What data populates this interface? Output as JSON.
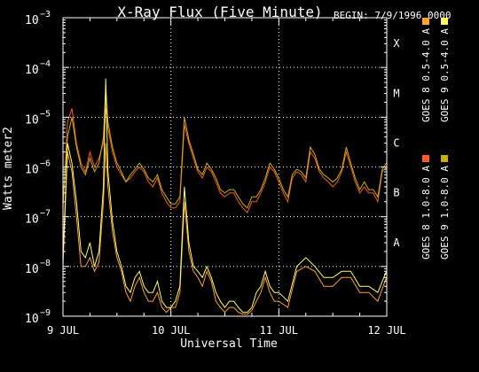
{
  "chart_data": {
    "type": "line",
    "title": "X-Ray Flux (Five Minute)",
    "begin_label": "BEGIN: 7/9/1996 0000",
    "xlabel": "Universal Time",
    "ylabel": "Watts meter2",
    "y_scale": "log",
    "ylim": [
      1e-09,
      0.001
    ],
    "xlim": [
      "1996-07-09 00:00",
      "1996-07-12 00:00"
    ],
    "x_ticks": [
      {
        "t": "1996-07-09 00:00",
        "label": "9 JUL"
      },
      {
        "t": "1996-07-10 00:00",
        "label": "10 JUL"
      },
      {
        "t": "1996-07-11 00:00",
        "label": "11 JUL"
      },
      {
        "t": "1996-07-12 00:00",
        "label": "12 JUL"
      }
    ],
    "y_ticks": [
      {
        "exp": -3,
        "label": "10",
        "sup": "−3"
      },
      {
        "exp": -4,
        "label": "10",
        "sup": "−4"
      },
      {
        "exp": -5,
        "label": "10",
        "sup": "−5"
      },
      {
        "exp": -6,
        "label": "10",
        "sup": "−6"
      },
      {
        "exp": -7,
        "label": "10",
        "sup": "−7"
      },
      {
        "exp": -8,
        "label": "10",
        "sup": "−8"
      },
      {
        "exp": -9,
        "label": "10",
        "sup": "−9"
      }
    ],
    "flare_classes": [
      {
        "label": "X",
        "exp": -4
      },
      {
        "label": "M",
        "exp": -5
      },
      {
        "label": "C",
        "exp": -6
      },
      {
        "label": "B",
        "exp": -7
      },
      {
        "label": "A",
        "exp": -8
      }
    ],
    "grid": true,
    "legend_position": "right",
    "series": [
      {
        "name": "GOES 8 1.0-8.0 A",
        "color": "#ff5a1f",
        "x": [
          "1996-07-09 00:00",
          "1996-07-09 01:00",
          "1996-07-09 02:00",
          "1996-07-09 03:00",
          "1996-07-09 04:00",
          "1996-07-09 05:00",
          "1996-07-09 06:00",
          "1996-07-09 07:00",
          "1996-07-09 08:00",
          "1996-07-09 09:00",
          "1996-07-09 09:30",
          "1996-07-09 10:00",
          "1996-07-09 11:00",
          "1996-07-09 12:00",
          "1996-07-09 13:00",
          "1996-07-09 14:00",
          "1996-07-09 15:00",
          "1996-07-09 16:00",
          "1996-07-09 17:00",
          "1996-07-09 18:00",
          "1996-07-09 19:00",
          "1996-07-09 20:00",
          "1996-07-09 21:00",
          "1996-07-09 22:00",
          "1996-07-09 23:00",
          "1996-07-10 00:00",
          "1996-07-10 01:00",
          "1996-07-10 02:00",
          "1996-07-10 03:00",
          "1996-07-10 04:00",
          "1996-07-10 05:00",
          "1996-07-10 06:00",
          "1996-07-10 07:00",
          "1996-07-10 08:00",
          "1996-07-10 09:00",
          "1996-07-10 10:00",
          "1996-07-10 11:00",
          "1996-07-10 12:00",
          "1996-07-10 13:00",
          "1996-07-10 14:00",
          "1996-07-10 15:00",
          "1996-07-10 16:00",
          "1996-07-10 17:00",
          "1996-07-10 18:00",
          "1996-07-10 19:00",
          "1996-07-10 20:00",
          "1996-07-10 21:00",
          "1996-07-10 22:00",
          "1996-07-10 23:00",
          "1996-07-11 00:00",
          "1996-07-11 01:00",
          "1996-07-11 02:00",
          "1996-07-11 03:00",
          "1996-07-11 04:00",
          "1996-07-11 05:00",
          "1996-07-11 06:00",
          "1996-07-11 07:00",
          "1996-07-11 08:00",
          "1996-07-11 09:00",
          "1996-07-11 10:00",
          "1996-07-11 11:00",
          "1996-07-11 12:00",
          "1996-07-11 13:00",
          "1996-07-11 14:00",
          "1996-07-11 15:00",
          "1996-07-11 16:00",
          "1996-07-11 17:00",
          "1996-07-11 18:00",
          "1996-07-11 19:00",
          "1996-07-11 20:00",
          "1996-07-11 21:00",
          "1996-07-11 22:00",
          "1996-07-11 23:00",
          "1996-07-11 23:55"
        ],
        "y": [
          1.5e-07,
          8e-06,
          1.5e-05,
          3e-06,
          1.2e-06,
          8e-07,
          2e-06,
          1e-06,
          1.5e-06,
          3e-06,
          1.5e-05,
          6e-06,
          2e-06,
          1e-06,
          7e-07,
          5e-07,
          6e-07,
          8e-07,
          1e-06,
          8e-07,
          5e-07,
          4e-07,
          6e-07,
          3e-07,
          2e-07,
          1.5e-07,
          1.5e-07,
          2e-07,
          7e-06,
          3e-06,
          1.5e-06,
          8e-07,
          6e-07,
          1e-06,
          8e-07,
          5e-07,
          3e-07,
          2.5e-07,
          3e-07,
          3e-07,
          2e-07,
          1.5e-07,
          1.2e-07,
          2e-07,
          2e-07,
          3e-07,
          5e-07,
          1e-06,
          8e-07,
          5e-07,
          3e-07,
          2e-07,
          6e-07,
          8e-07,
          7e-07,
          5e-07,
          2e-06,
          1.5e-06,
          8e-07,
          6e-07,
          5e-07,
          4e-07,
          5e-07,
          8e-07,
          2e-06,
          1e-06,
          5e-07,
          3e-07,
          4e-07,
          3e-07,
          3e-07,
          2e-07,
          8e-07,
          1e-06
        ]
      },
      {
        "name": "GOES 8 0.5-4.0 A",
        "color": "#ffa030",
        "x": [
          "1996-07-09 00:00",
          "1996-07-09 01:00",
          "1996-07-09 02:00",
          "1996-07-09 03:00",
          "1996-07-09 04:00",
          "1996-07-09 05:00",
          "1996-07-09 06:00",
          "1996-07-09 07:00",
          "1996-07-09 08:00",
          "1996-07-09 09:00",
          "1996-07-09 09:30",
          "1996-07-09 10:00",
          "1996-07-09 11:00",
          "1996-07-09 12:00",
          "1996-07-09 13:00",
          "1996-07-09 14:00",
          "1996-07-09 15:00",
          "1996-07-09 16:00",
          "1996-07-09 17:00",
          "1996-07-09 18:00",
          "1996-07-09 19:00",
          "1996-07-09 20:00",
          "1996-07-09 21:00",
          "1996-07-09 22:00",
          "1996-07-09 23:00",
          "1996-07-10 00:00",
          "1996-07-10 01:00",
          "1996-07-10 02:00",
          "1996-07-10 03:00",
          "1996-07-10 04:00",
          "1996-07-10 05:00",
          "1996-07-10 06:00",
          "1996-07-10 07:00",
          "1996-07-10 08:00",
          "1996-07-10 09:00",
          "1996-07-10 10:00",
          "1996-07-10 11:00",
          "1996-07-10 12:00",
          "1996-07-10 13:00",
          "1996-07-10 14:00",
          "1996-07-10 15:00",
          "1996-07-10 16:00",
          "1996-07-10 17:00",
          "1996-07-10 18:00",
          "1996-07-10 19:00",
          "1996-07-10 20:00",
          "1996-07-10 21:00",
          "1996-07-10 22:00",
          "1996-07-10 23:00",
          "1996-07-11 00:00",
          "1996-07-11 02:00",
          "1996-07-11 04:00",
          "1996-07-11 06:00",
          "1996-07-11 08:00",
          "1996-07-11 10:00",
          "1996-07-11 12:00",
          "1996-07-11 14:00",
          "1996-07-11 16:00",
          "1996-07-11 18:00",
          "1996-07-11 20:00",
          "1996-07-11 22:00",
          "1996-07-11 23:55"
        ],
        "y": [
          1e-08,
          2e-06,
          8e-07,
          1e-07,
          1e-08,
          1e-08,
          1.5e-08,
          8e-09,
          1.2e-08,
          2e-07,
          3e-06,
          4e-07,
          5e-08,
          1.5e-08,
          8e-09,
          3e-09,
          2e-09,
          4e-09,
          6e-09,
          3e-09,
          2e-09,
          2e-09,
          3e-09,
          1.5e-09,
          1.2e-09,
          1.5e-09,
          1.5e-09,
          3e-09,
          2e-07,
          2e-08,
          8e-09,
          6e-09,
          4e-09,
          8e-09,
          5e-09,
          2e-09,
          1.5e-09,
          1.2e-09,
          1.5e-09,
          1.5e-09,
          1.2e-09,
          1.1e-09,
          1.1e-09,
          1.3e-09,
          2e-09,
          3e-09,
          6e-09,
          3e-09,
          2e-09,
          2e-09,
          1.5e-09,
          8e-09,
          1e-08,
          8e-09,
          4e-09,
          4e-09,
          6e-09,
          6e-09,
          3e-09,
          3e-09,
          2e-09,
          6e-09
        ]
      },
      {
        "name": "GOES 9 1.0-8.0 A",
        "color": "#c8b400",
        "x": [
          "1996-07-09 00:00",
          "1996-07-09 01:00",
          "1996-07-09 02:00",
          "1996-07-09 03:00",
          "1996-07-09 04:00",
          "1996-07-09 05:00",
          "1996-07-09 06:00",
          "1996-07-09 07:00",
          "1996-07-09 08:00",
          "1996-07-09 09:00",
          "1996-07-09 09:30",
          "1996-07-09 10:00",
          "1996-07-09 11:00",
          "1996-07-09 12:00",
          "1996-07-09 13:00",
          "1996-07-09 14:00",
          "1996-07-09 15:00",
          "1996-07-09 16:00",
          "1996-07-09 17:00",
          "1996-07-09 18:00",
          "1996-07-09 19:00",
          "1996-07-09 20:00",
          "1996-07-09 21:00",
          "1996-07-09 22:00",
          "1996-07-09 23:00",
          "1996-07-10 00:00",
          "1996-07-10 01:00",
          "1996-07-10 02:00",
          "1996-07-10 03:00",
          "1996-07-10 04:00",
          "1996-07-10 05:00",
          "1996-07-10 06:00",
          "1996-07-10 07:00",
          "1996-07-10 08:00",
          "1996-07-10 09:00",
          "1996-07-10 10:00",
          "1996-07-10 11:00",
          "1996-07-10 12:00",
          "1996-07-10 13:00",
          "1996-07-10 14:00",
          "1996-07-10 15:00",
          "1996-07-10 16:00",
          "1996-07-10 17:00",
          "1996-07-10 18:00",
          "1996-07-10 19:00",
          "1996-07-10 20:00",
          "1996-07-10 21:00",
          "1996-07-10 22:00",
          "1996-07-10 23:00",
          "1996-07-11 00:00",
          "1996-07-11 01:00",
          "1996-07-11 02:00",
          "1996-07-11 03:00",
          "1996-07-11 04:00",
          "1996-07-11 05:00",
          "1996-07-11 06:00",
          "1996-07-11 07:00",
          "1996-07-11 08:00",
          "1996-07-11 09:00",
          "1996-07-11 10:00",
          "1996-07-11 11:00",
          "1996-07-11 12:00",
          "1996-07-11 13:00",
          "1996-07-11 14:00",
          "1996-07-11 15:00",
          "1996-07-11 16:00",
          "1996-07-11 17:00",
          "1996-07-11 18:00",
          "1996-07-11 19:00",
          "1996-07-11 20:00",
          "1996-07-11 21:00",
          "1996-07-11 22:00",
          "1996-07-11 23:00",
          "1996-07-11 23:55"
        ],
        "y": [
          2e-07,
          4e-06,
          1e-05,
          2.5e-06,
          1e-06,
          7e-07,
          1.5e-06,
          8e-07,
          1.2e-06,
          4e-06,
          4e-05,
          8e-06,
          2.5e-06,
          1.2e-06,
          8e-07,
          5e-07,
          7e-07,
          9e-07,
          1.2e-06,
          9e-07,
          6e-07,
          5e-07,
          7e-07,
          3.5e-07,
          2.5e-07,
          1.8e-07,
          1.8e-07,
          2.5e-07,
          1e-05,
          3.5e-06,
          1.8e-06,
          9e-07,
          7e-07,
          1.2e-06,
          9e-07,
          6e-07,
          3.5e-07,
          3e-07,
          3.5e-07,
          3.5e-07,
          2.5e-07,
          1.8e-07,
          1.5e-07,
          2.5e-07,
          2.5e-07,
          3.5e-07,
          6e-07,
          1.2e-06,
          9e-07,
          6e-07,
          3.5e-07,
          2.5e-07,
          7e-07,
          9e-07,
          8e-07,
          6e-07,
          2.5e-06,
          1.8e-06,
          9e-07,
          7e-07,
          6e-07,
          5e-07,
          6e-07,
          9e-07,
          2.5e-06,
          1.2e-06,
          6e-07,
          3.5e-07,
          5e-07,
          3.5e-07,
          3.5e-07,
          2.5e-07,
          9e-07,
          1.2e-06
        ]
      },
      {
        "name": "GOES 9 0.5-4.0 A",
        "color": "#ffff60",
        "x": [
          "1996-07-09 00:00",
          "1996-07-09 01:00",
          "1996-07-09 02:00",
          "1996-07-09 03:00",
          "1996-07-09 04:00",
          "1996-07-09 05:00",
          "1996-07-09 06:00",
          "1996-07-09 07:00",
          "1996-07-09 08:00",
          "1996-07-09 09:00",
          "1996-07-09 09:30",
          "1996-07-09 10:00",
          "1996-07-09 11:00",
          "1996-07-09 12:00",
          "1996-07-09 13:00",
          "1996-07-09 14:00",
          "1996-07-09 15:00",
          "1996-07-09 16:00",
          "1996-07-09 17:00",
          "1996-07-09 18:00",
          "1996-07-09 19:00",
          "1996-07-09 20:00",
          "1996-07-09 21:00",
          "1996-07-09 22:00",
          "1996-07-09 23:00",
          "1996-07-10 00:00",
          "1996-07-10 01:00",
          "1996-07-10 02:00",
          "1996-07-10 03:00",
          "1996-07-10 04:00",
          "1996-07-10 05:00",
          "1996-07-10 06:00",
          "1996-07-10 07:00",
          "1996-07-10 08:00",
          "1996-07-10 09:00",
          "1996-07-10 10:00",
          "1996-07-10 11:00",
          "1996-07-10 12:00",
          "1996-07-10 13:00",
          "1996-07-10 14:00",
          "1996-07-10 15:00",
          "1996-07-10 16:00",
          "1996-07-10 17:00",
          "1996-07-10 18:00",
          "1996-07-10 19:00",
          "1996-07-10 20:00",
          "1996-07-10 21:00",
          "1996-07-10 22:00",
          "1996-07-10 23:00",
          "1996-07-11 00:00",
          "1996-07-11 02:00",
          "1996-07-11 04:00",
          "1996-07-11 06:00",
          "1996-07-11 08:00",
          "1996-07-11 10:00",
          "1996-07-11 12:00",
          "1996-07-11 14:00",
          "1996-07-11 16:00",
          "1996-07-11 18:00",
          "1996-07-11 20:00",
          "1996-07-11 22:00",
          "1996-07-11 23:55"
        ],
        "y": [
          1.5e-08,
          3e-06,
          1.2e-06,
          2e-07,
          2e-08,
          1.5e-08,
          3e-08,
          1e-08,
          2e-08,
          4e-07,
          6e-05,
          8e-07,
          8e-08,
          2e-08,
          1e-08,
          4e-09,
          3e-09,
          6e-09,
          8e-09,
          4e-09,
          3e-09,
          3e-09,
          5e-09,
          2e-09,
          1.5e-09,
          1.5e-09,
          2e-09,
          4e-09,
          4e-07,
          3e-08,
          1e-08,
          8e-09,
          6e-09,
          1e-08,
          6e-09,
          3e-09,
          2e-09,
          1.5e-09,
          2e-09,
          2e-09,
          1.5e-09,
          1.2e-09,
          1.2e-09,
          1.5e-09,
          3e-09,
          4e-09,
          8e-09,
          4e-09,
          3e-09,
          3e-09,
          2e-09,
          1e-08,
          1.5e-08,
          1e-08,
          6e-09,
          6e-09,
          8e-09,
          8e-09,
          4e-09,
          4e-09,
          3e-09,
          8e-09
        ]
      }
    ]
  }
}
